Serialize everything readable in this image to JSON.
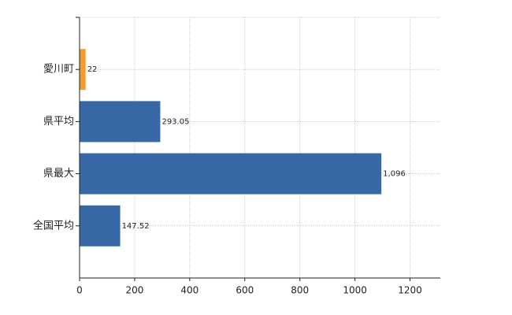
{
  "chart_data": {
    "type": "bar",
    "orientation": "horizontal",
    "categories": [
      "愛川町",
      "県平均",
      "県最大",
      "全国平均"
    ],
    "values": [
      22,
      293.05,
      1096,
      147.52
    ],
    "value_labels": [
      "22",
      "293.05",
      "1,096",
      "147.52"
    ],
    "colors": [
      "#f39c34",
      "#3868a6",
      "#3868a6",
      "#3868a6"
    ],
    "xlim": [
      0,
      1310
    ],
    "xticks": [
      0,
      200,
      400,
      600,
      800,
      1000,
      1200
    ],
    "grid": true
  }
}
